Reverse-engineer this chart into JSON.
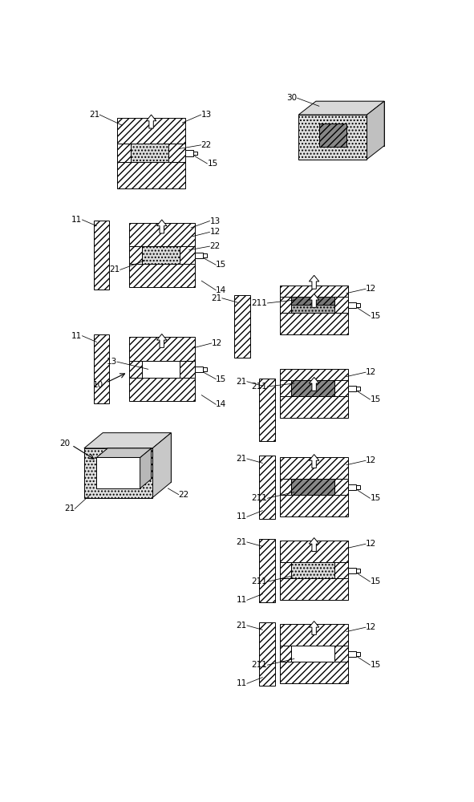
{
  "bg": "#ffffff",
  "lw": 0.7,
  "hatch_mold": "////",
  "hatch_foam_dot": "....",
  "hatch_foam_diag": "////",
  "fc_white": "#ffffff",
  "fc_foam_light": "#e0e0e0",
  "fc_foam_med": "#c0c0c0",
  "fc_foam_dark": "#909090",
  "fc_foam_darker": "#707070",
  "fc_top_face": "#e8e8e8",
  "fc_right_face": "#d0d0d0",
  "fc_back_face": "#c8c8c8"
}
